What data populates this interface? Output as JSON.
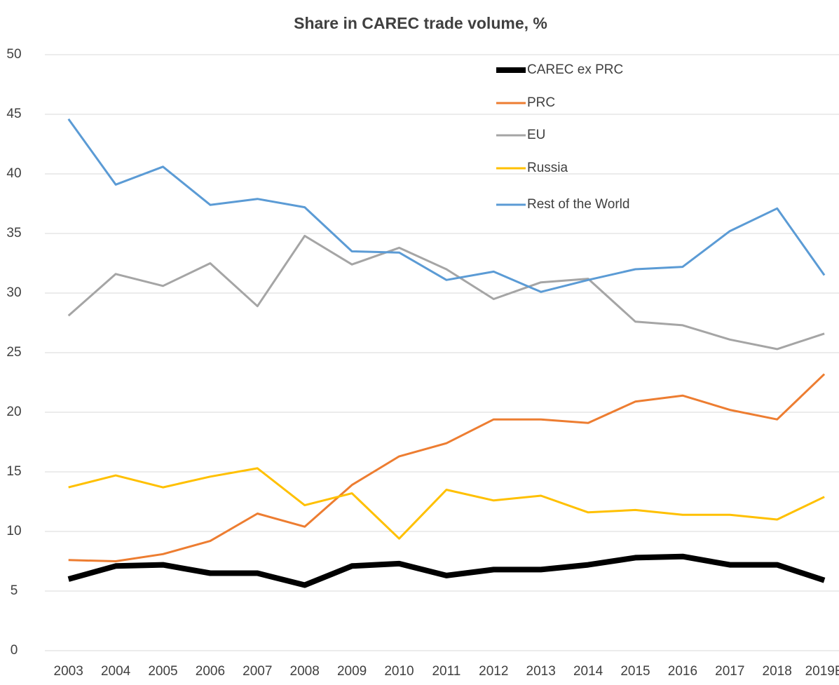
{
  "chart_data": {
    "type": "line",
    "title": "Share in CAREC trade volume, %",
    "categories": [
      "2003",
      "2004",
      "2005",
      "2006",
      "2007",
      "2008",
      "2009",
      "2010",
      "2011",
      "2012",
      "2013",
      "2014",
      "2015",
      "2016",
      "2017",
      "2018",
      "2019E"
    ],
    "series": [
      {
        "name": "CAREC ex PRC",
        "color": "#000000",
        "values": [
          6.0,
          7.1,
          7.2,
          6.5,
          6.5,
          5.5,
          7.1,
          7.3,
          6.3,
          6.8,
          6.8,
          7.2,
          7.8,
          7.9,
          7.2,
          7.2,
          5.9
        ]
      },
      {
        "name": "PRC",
        "color": "#ed7d31",
        "values": [
          7.6,
          7.5,
          8.1,
          9.2,
          11.5,
          10.4,
          13.9,
          16.3,
          17.4,
          19.4,
          19.4,
          19.1,
          20.9,
          21.4,
          20.2,
          19.4,
          23.2
        ]
      },
      {
        "name": "EU",
        "color": "#a5a5a5",
        "values": [
          28.1,
          31.6,
          30.6,
          32.5,
          28.9,
          34.8,
          32.4,
          33.8,
          32.0,
          29.5,
          30.9,
          31.2,
          27.6,
          27.3,
          26.1,
          25.3,
          26.6
        ]
      },
      {
        "name": "Russia",
        "color": "#ffc000",
        "values": [
          13.7,
          14.7,
          13.7,
          14.6,
          15.3,
          12.2,
          13.2,
          9.4,
          13.5,
          12.6,
          13.0,
          11.6,
          11.8,
          11.4,
          11.4,
          11.0,
          12.9
        ]
      },
      {
        "name": "Rest of the World",
        "color": "#5b9bd5",
        "values": [
          44.6,
          39.1,
          40.6,
          37.4,
          37.9,
          37.2,
          33.5,
          33.4,
          31.1,
          31.8,
          30.1,
          31.1,
          32.0,
          32.2,
          35.2,
          37.1,
          31.5
        ]
      }
    ],
    "ylim": [
      0,
      50
    ],
    "yticks": [
      0,
      5,
      10,
      15,
      20,
      25,
      30,
      35,
      40,
      45,
      50
    ],
    "grid": true,
    "legend": "top-right"
  }
}
